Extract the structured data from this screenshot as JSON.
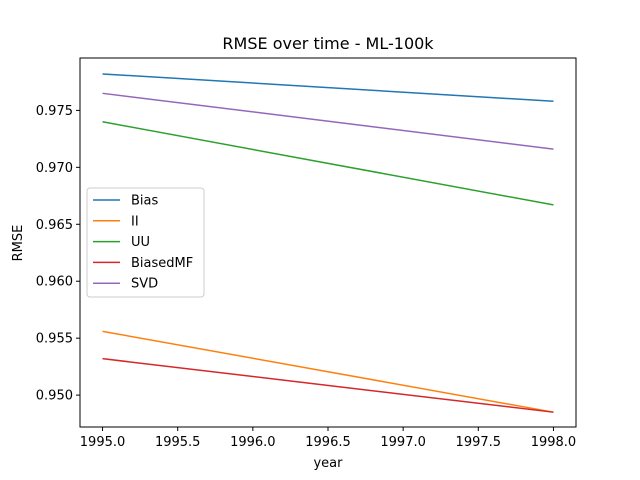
{
  "chart_data": {
    "type": "line",
    "title": "RMSE over time - ML-100k",
    "xlabel": "year",
    "ylabel": "RMSE",
    "xlim": [
      1994.85,
      1998.15
    ],
    "ylim": [
      0.9472,
      0.9796
    ],
    "xticks": [
      1995.0,
      1995.5,
      1996.0,
      1996.5,
      1997.0,
      1997.5,
      1998.0
    ],
    "xtick_labels": [
      "1995.0",
      "1995.5",
      "1996.0",
      "1996.5",
      "1997.0",
      "1997.5",
      "1998.0"
    ],
    "yticks": [
      0.95,
      0.955,
      0.96,
      0.965,
      0.97,
      0.975
    ],
    "ytick_labels": [
      "0.950",
      "0.955",
      "0.960",
      "0.965",
      "0.970",
      "0.975"
    ],
    "grid": false,
    "legend_position": "center-left",
    "series": [
      {
        "name": "Bias",
        "color": "#1f77b4",
        "x": [
          1995.0,
          1998.0
        ],
        "y": [
          0.9782,
          0.9758
        ]
      },
      {
        "name": "II",
        "color": "#ff7f0e",
        "x": [
          1995.0,
          1998.0
        ],
        "y": [
          0.9556,
          0.9485
        ]
      },
      {
        "name": "UU",
        "color": "#2ca02c",
        "x": [
          1995.0,
          1998.0
        ],
        "y": [
          0.974,
          0.9667
        ]
      },
      {
        "name": "BiasedMF",
        "color": "#d62728",
        "x": [
          1995.0,
          1998.0
        ],
        "y": [
          0.9532,
          0.9485
        ]
      },
      {
        "name": "SVD",
        "color": "#9467bd",
        "x": [
          1995.0,
          1998.0
        ],
        "y": [
          0.9765,
          0.9716
        ]
      }
    ]
  }
}
